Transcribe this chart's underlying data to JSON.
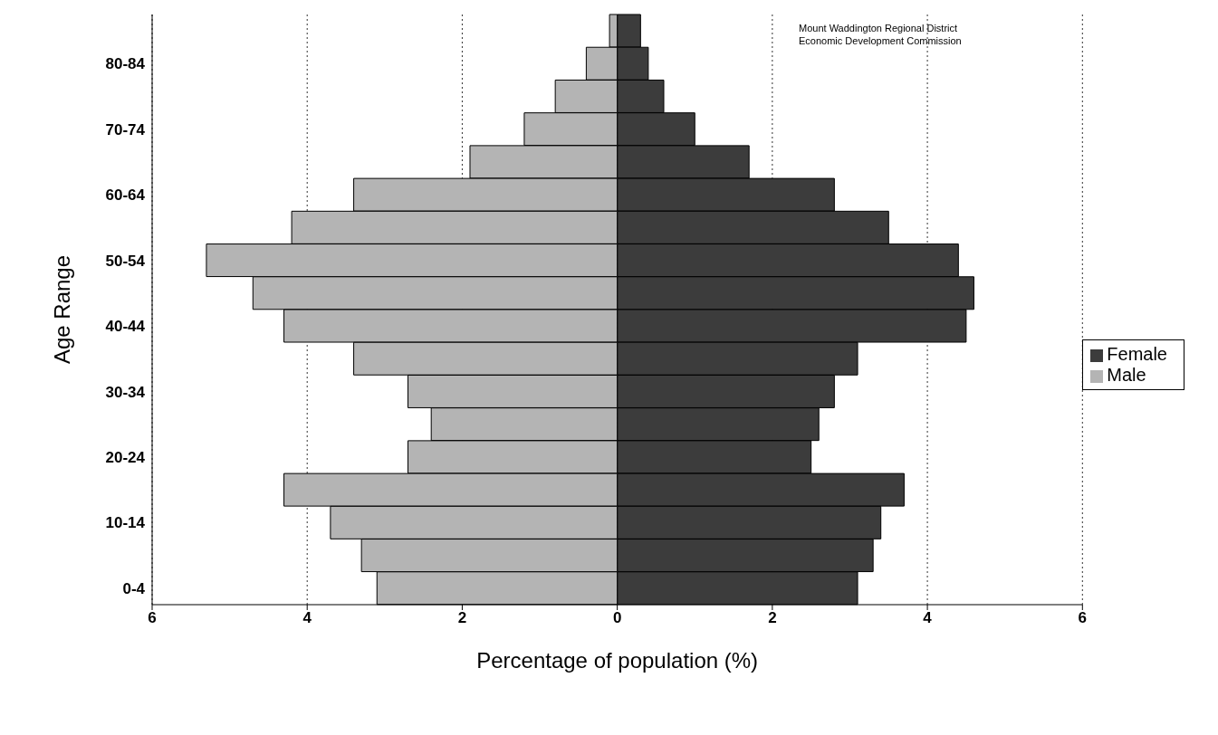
{
  "chart_data": {
    "type": "bar",
    "orientation": "horizontal",
    "xlabel": "Percentage of population (%)",
    "ylabel": "Age Range",
    "annotations": [
      "Mount Waddington Regional District\nEconomic Development Commission"
    ],
    "categories": [
      null,
      "80-84",
      null,
      "70-74",
      null,
      "60-64",
      null,
      "50-54",
      null,
      "40-44",
      null,
      "30-34",
      null,
      "20-24",
      null,
      "10-14",
      null,
      "0-4"
    ],
    "series": [
      {
        "name": "Female",
        "color": "#3c3c3c",
        "values": [
          0.3,
          0.4,
          0.6,
          1.0,
          1.7,
          2.8,
          3.5,
          4.4,
          4.6,
          4.5,
          3.1,
          2.8,
          2.6,
          2.5,
          3.7,
          3.4,
          3.3,
          3.1
        ]
      },
      {
        "name": "Male",
        "color": "#b4b4b4",
        "values": [
          -0.1,
          -0.4,
          -0.8,
          -1.2,
          -1.9,
          -3.4,
          -4.2,
          -5.3,
          -4.7,
          -4.3,
          -3.4,
          -2.7,
          -2.4,
          -2.7,
          -4.3,
          -3.7,
          -3.3,
          -3.1
        ]
      }
    ],
    "xlim": [
      -6,
      6
    ],
    "xticks": [
      {
        "value": -6,
        "label": "6"
      },
      {
        "value": -4,
        "label": "4"
      },
      {
        "value": -2,
        "label": "2"
      },
      0,
      2,
      4,
      6
    ],
    "grid": "x",
    "legend": "right",
    "stacked": true
  }
}
